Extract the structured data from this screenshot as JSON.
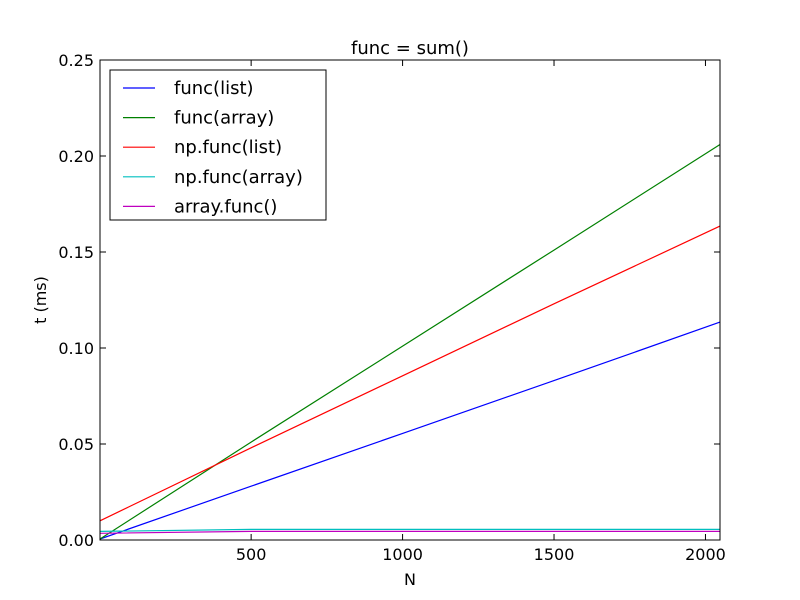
{
  "chart_data": {
    "type": "line",
    "title": "func = sum()",
    "xlabel": "N",
    "ylabel": "t (ms)",
    "xlim": [
      1,
      2048
    ],
    "ylim": [
      0.0,
      0.25
    ],
    "xticks": [
      500,
      1000,
      1500,
      2000
    ],
    "xtick_labels": [
      "500",
      "1000",
      "1500",
      "2000"
    ],
    "yticks": [
      0.0,
      0.05,
      0.1,
      0.15,
      0.2,
      0.25
    ],
    "ytick_labels": [
      "0.00",
      "0.05",
      "0.10",
      "0.15",
      "0.20",
      "0.25"
    ],
    "grid": false,
    "legend_position": "top-left",
    "x": [
      1,
      500,
      1000,
      1500,
      2048
    ],
    "series": [
      {
        "name": "func(list)",
        "color": "#0000ff",
        "values": [
          0.0005,
          0.028,
          0.0555,
          0.083,
          0.1135
        ]
      },
      {
        "name": "func(array)",
        "color": "#008000",
        "values": [
          0.0005,
          0.051,
          0.101,
          0.151,
          0.206
        ]
      },
      {
        "name": "np.func(list)",
        "color": "#ff0000",
        "values": [
          0.01,
          0.048,
          0.0855,
          0.123,
          0.1635
        ]
      },
      {
        "name": "np.func(array)",
        "color": "#00bfbf",
        "values": [
          0.0045,
          0.0055,
          0.0055,
          0.0055,
          0.0055
        ]
      },
      {
        "name": "array.func()",
        "color": "#bf00bf",
        "values": [
          0.0035,
          0.0045,
          0.0045,
          0.0045,
          0.0045
        ]
      }
    ]
  }
}
